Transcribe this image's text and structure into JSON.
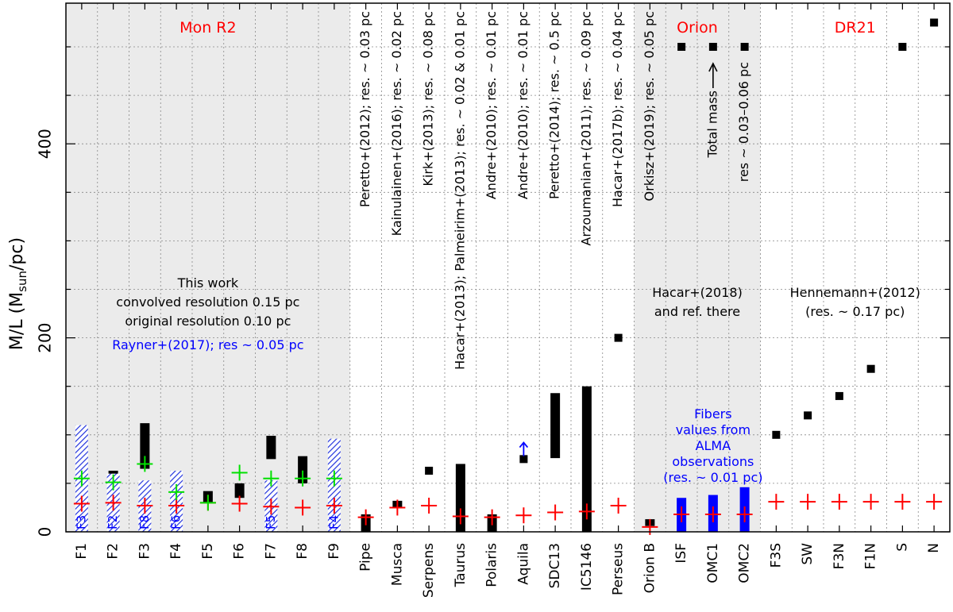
{
  "chart_data": {
    "type": "scatter",
    "title": "",
    "xlabel": "",
    "ylabel": {
      "main": "M/L (M",
      "sub": "sun",
      "tail": "/pc)"
    },
    "ylim": [
      0,
      545
    ],
    "yticks": [
      0,
      200,
      400
    ],
    "grid": true,
    "categories": [
      "F1",
      "F2",
      "F3",
      "F4",
      "F5",
      "F6",
      "F7",
      "F8",
      "F9",
      "Pipe",
      "Musca",
      "Serpens",
      "Taurus",
      "Polaris",
      "Aquila",
      "SDC13",
      "IC5146",
      "Perseus",
      "Orion B",
      "ISF",
      "OMC1",
      "OMC2",
      "F3S",
      "SW",
      "F3N",
      "F1N",
      "S",
      "N"
    ],
    "colors": {
      "black": "#000000",
      "red": "#ff0000",
      "green": "#00e000",
      "blue": "#0000ff",
      "shade": "#ebebeb",
      "grid": "#888888"
    },
    "regions": [
      {
        "name": "Mon R2",
        "from": 0,
        "to": 8,
        "shaded": true
      },
      {
        "name": "Orion",
        "from": 18,
        "to": 21,
        "shaded": true
      },
      {
        "name": "DR21",
        "from": 22,
        "to": 27,
        "shaded": false
      }
    ],
    "series": [
      {
        "name": "observed range",
        "kind": "black-bar",
        "values": [
          {
            "i": 0,
            "low": 55,
            "high": 72
          },
          {
            "i": 1,
            "low": 50,
            "high": 63
          },
          {
            "i": 2,
            "low": 65,
            "high": 112
          },
          {
            "i": 3,
            "low": 42,
            "high": 63
          },
          {
            "i": 4,
            "low": 30,
            "high": 42
          },
          {
            "i": 5,
            "low": 35,
            "high": 50
          },
          {
            "i": 6,
            "low": 75,
            "high": 99
          },
          {
            "i": 7,
            "low": 50,
            "high": 78
          },
          {
            "i": 8,
            "low": 47,
            "high": 57
          },
          {
            "i": 9,
            "low": 0,
            "high": 18
          },
          {
            "i": 10,
            "low": 25,
            "high": 32
          },
          {
            "i": 12,
            "low": 0,
            "high": 70
          },
          {
            "i": 13,
            "low": 0,
            "high": 18
          },
          {
            "i": 15,
            "low": 76,
            "high": 143
          },
          {
            "i": 16,
            "low": 0,
            "high": 150
          },
          {
            "i": 18,
            "low": 6,
            "high": 13
          }
        ]
      },
      {
        "name": "Rayner+(2017)",
        "kind": "blue-hatched-bar",
        "values": [
          {
            "i": 0,
            "low": 0,
            "high": 110
          },
          {
            "i": 1,
            "low": 0,
            "high": 60
          },
          {
            "i": 2,
            "low": 0,
            "high": 53
          },
          {
            "i": 3,
            "low": 0,
            "high": 63
          },
          {
            "i": 6,
            "low": 0,
            "high": 53
          },
          {
            "i": 8,
            "low": 0,
            "high": 96
          }
        ]
      },
      {
        "name": "ALMA fibers",
        "kind": "blue-bar",
        "values": [
          {
            "i": 19,
            "low": 0,
            "high": 35
          },
          {
            "i": 20,
            "low": 0,
            "high": 38
          },
          {
            "i": 21,
            "low": 0,
            "high": 46
          }
        ]
      },
      {
        "name": "squares",
        "kind": "black-square",
        "values": [
          {
            "i": 11,
            "y": 63
          },
          {
            "i": 14,
            "y": 75
          },
          {
            "i": 17,
            "y": 200
          },
          {
            "i": 19,
            "y": 500
          },
          {
            "i": 20,
            "y": 500
          },
          {
            "i": 21,
            "y": 500
          },
          {
            "i": 22,
            "y": 100
          },
          {
            "i": 23,
            "y": 120
          },
          {
            "i": 24,
            "y": 140
          },
          {
            "i": 25,
            "y": 168
          },
          {
            "i": 26,
            "y": 500
          },
          {
            "i": 27,
            "y": 525
          }
        ]
      },
      {
        "name": "red crosses",
        "kind": "red-cross",
        "values": [
          {
            "i": 0,
            "y": 29
          },
          {
            "i": 1,
            "y": 30
          },
          {
            "i": 2,
            "y": 27
          },
          {
            "i": 3,
            "y": 27
          },
          {
            "i": 4,
            "y": 30
          },
          {
            "i": 5,
            "y": 29
          },
          {
            "i": 6,
            "y": 26
          },
          {
            "i": 7,
            "y": 25
          },
          {
            "i": 8,
            "y": 27
          },
          {
            "i": 9,
            "y": 15
          },
          {
            "i": 10,
            "y": 25
          },
          {
            "i": 11,
            "y": 27
          },
          {
            "i": 12,
            "y": 16
          },
          {
            "i": 13,
            "y": 15
          },
          {
            "i": 14,
            "y": 17
          },
          {
            "i": 15,
            "y": 20
          },
          {
            "i": 16,
            "y": 21
          },
          {
            "i": 17,
            "y": 27
          },
          {
            "i": 18,
            "y": 5
          },
          {
            "i": 19,
            "y": 18
          },
          {
            "i": 20,
            "y": 18
          },
          {
            "i": 21,
            "y": 18
          },
          {
            "i": 22,
            "y": 31
          },
          {
            "i": 23,
            "y": 31
          },
          {
            "i": 24,
            "y": 31
          },
          {
            "i": 25,
            "y": 31
          },
          {
            "i": 26,
            "y": 31
          },
          {
            "i": 27,
            "y": 31
          }
        ]
      },
      {
        "name": "green crosses",
        "kind": "green-cross",
        "values": [
          {
            "i": 0,
            "y": 55
          },
          {
            "i": 1,
            "y": 51
          },
          {
            "i": 2,
            "y": 70
          },
          {
            "i": 3,
            "y": 41
          },
          {
            "i": 4,
            "y": 30
          },
          {
            "i": 5,
            "y": 61
          },
          {
            "i": 6,
            "y": 55
          },
          {
            "i": 7,
            "y": 55
          },
          {
            "i": 8,
            "y": 55
          }
        ]
      }
    ],
    "arrow_up": {
      "i": 14,
      "from": 78,
      "to": 92
    },
    "filament_labels": [
      {
        "i": 0,
        "label": "F3"
      },
      {
        "i": 1,
        "label": "F2"
      },
      {
        "i": 2,
        "label": "F8"
      },
      {
        "i": 3,
        "label": "F6"
      },
      {
        "i": 6,
        "label": "F5"
      },
      {
        "i": 8,
        "label": "F4"
      }
    ],
    "references": [
      {
        "i": 9,
        "text": "Peretto+(2012); res. ~ 0.03 pc"
      },
      {
        "i": 10,
        "text": "Kainulainen+(2016); res. ~ 0.02 pc"
      },
      {
        "i": 11,
        "text": "Kirk+(2013); res. ~ 0.08 pc"
      },
      {
        "i": 12,
        "text": "Hacar+(2013); Palmeirim+(2013); res. ~ 0.02 & 0.01 pc"
      },
      {
        "i": 13,
        "text": "Andre+(2010); res. ~ 0.01 pc"
      },
      {
        "i": 14,
        "text": "Andre+(2010); res. ~ 0.01 pc"
      },
      {
        "i": 15,
        "text": "Peretto+(2014); res. ~ 0.5 pc"
      },
      {
        "i": 16,
        "text": "Arzoumanian+(2011); res. ~ 0.09 pc"
      },
      {
        "i": 17,
        "text": "Hacar+(2017b); res. ~ 0.04 pc"
      },
      {
        "i": 18,
        "text": "Orkisz+(2019); res. ~ 0.05 pc"
      }
    ],
    "annotations": {
      "total_mass": "Total mass",
      "orion_res": "res ~ 0.03–0.06 pc",
      "this_work": [
        "This work",
        "convolved resolution 0.15 pc",
        "original resolution 0.10 pc"
      ],
      "rayner": "Rayner+(2017); res ~ 0.05 pc",
      "hacar2018": [
        "Hacar+(2018)",
        "and ref. there"
      ],
      "alma": [
        "Fibers",
        "values from",
        "ALMA",
        "observations",
        "(res. ~ 0.01 pc)"
      ],
      "hennemann": [
        "Hennemann+(2012)",
        "(res. ~ 0.17 pc)"
      ]
    }
  }
}
